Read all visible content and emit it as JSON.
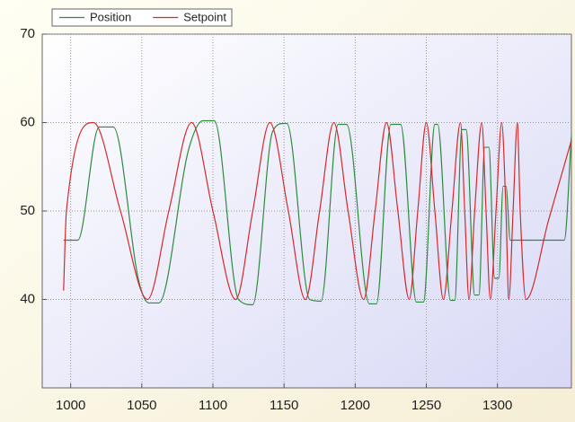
{
  "chart_data": {
    "type": "line",
    "series": [
      {
        "name": "Position",
        "color": "#2e8b3e",
        "x": [
          995,
          1005,
          1020,
          1030,
          1048,
          1055,
          1062,
          1083,
          1093,
          1101,
          1118,
          1128,
          1142,
          1150,
          1152,
          1168,
          1176,
          1188,
          1194,
          1210,
          1215,
          1225,
          1232,
          1243,
          1248,
          1256,
          1258,
          1267,
          1270,
          1275,
          1278,
          1284,
          1287,
          1291,
          1294,
          1298,
          1301,
          1304,
          1306,
          1309,
          1347,
          1352
        ],
        "values": [
          46.7,
          46.7,
          59.5,
          59.5,
          42,
          39.6,
          39.6,
          57,
          60.2,
          60.2,
          40,
          39.4,
          59,
          59.9,
          59.9,
          40,
          39.8,
          59.8,
          59.8,
          39.5,
          39.5,
          59.8,
          59.8,
          39.7,
          39.7,
          59.8,
          59.8,
          39.9,
          39.9,
          59.2,
          59.2,
          40.5,
          40.5,
          57.2,
          57.2,
          42.4,
          42.4,
          52.8,
          52.8,
          46.7,
          46.7,
          58.5
        ]
      },
      {
        "name": "Setpoint",
        "color": "#d42a2a",
        "x": [
          995,
          997,
          1016,
          1035,
          1054,
          1069,
          1085,
          1100,
          1116,
          1128,
          1140,
          1153,
          1165,
          1175,
          1185,
          1195,
          1206,
          1214,
          1222,
          1230,
          1238,
          1244,
          1250,
          1256,
          1262,
          1268,
          1274,
          1277,
          1280,
          1284,
          1289,
          1292,
          1295,
          1299,
          1303,
          1306,
          1308,
          1311,
          1314,
          1316,
          1320,
          1336,
          1352
        ],
        "values": [
          41,
          50,
          60,
          50,
          40,
          50,
          60,
          50,
          40,
          50,
          60,
          50,
          40,
          50,
          60,
          50,
          40,
          50,
          60,
          50,
          40,
          50,
          60,
          50,
          40,
          50,
          60,
          50,
          40,
          50,
          60,
          50,
          40,
          50,
          60,
          50,
          40,
          50,
          60,
          50,
          40,
          49,
          58
        ]
      }
    ],
    "xlim": [
      980,
      1352
    ],
    "xticks": [
      1000,
      1050,
      1100,
      1150,
      1200,
      1250,
      1300
    ],
    "ylim": [
      30,
      70
    ],
    "yticks": [
      40,
      50,
      60,
      70
    ],
    "grid": true,
    "legend": "top-left"
  }
}
